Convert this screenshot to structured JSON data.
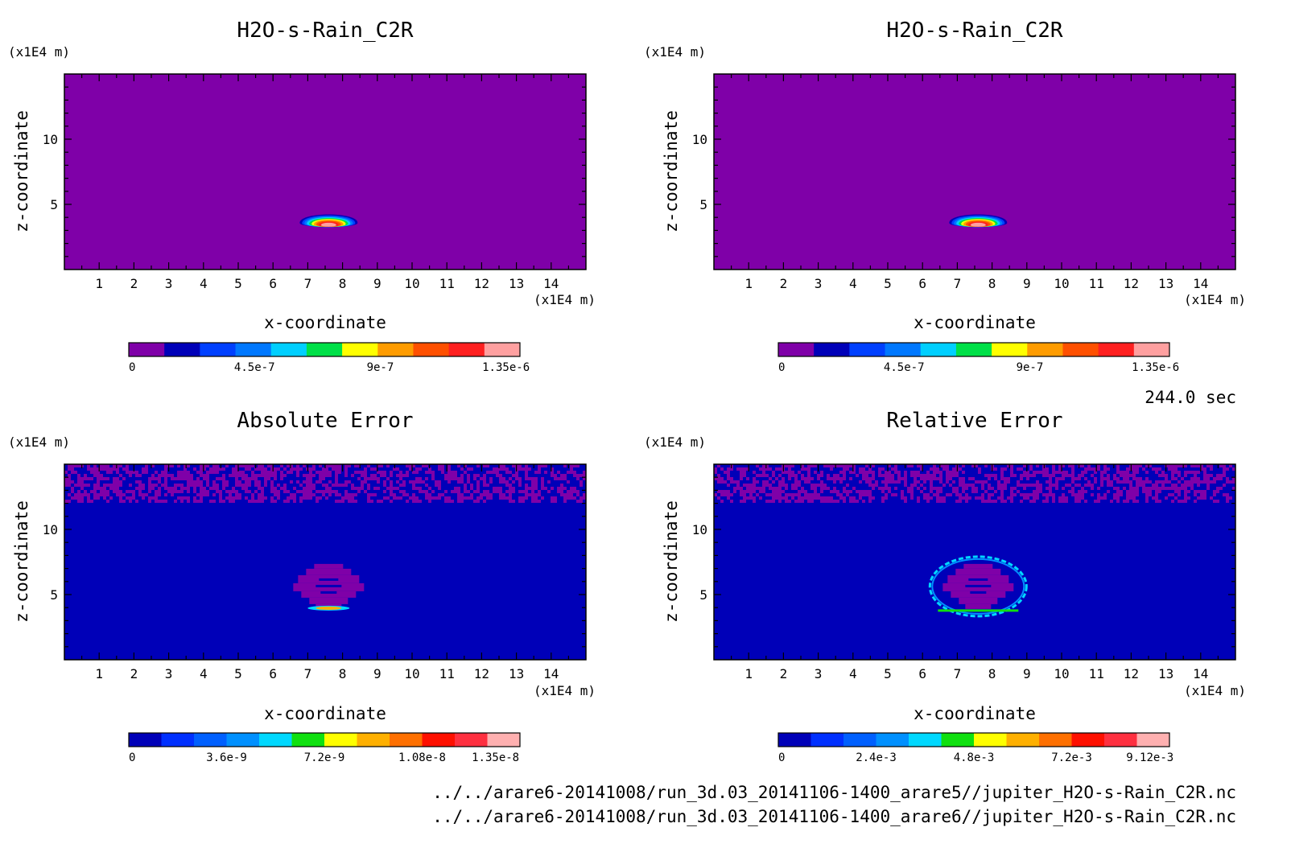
{
  "colors": {
    "background": "#ffffff",
    "frame": "#000000",
    "palette_main": [
      "#7f00a8",
      "#0000b8",
      "#0040ff",
      "#0078ff",
      "#00cfff",
      "#00e048",
      "#ffff00",
      "#ff9c00",
      "#ff5000",
      "#ff2020",
      "#ffa0a0"
    ],
    "palette_error": [
      "#0000b8",
      "#0030ff",
      "#0060ff",
      "#0090ff",
      "#00d8ff",
      "#10e010",
      "#ffff00",
      "#ffb000",
      "#ff7000",
      "#ff1000",
      "#ff3040",
      "#ffb0b0"
    ]
  },
  "time_label": "244.0 sec",
  "footer": {
    "line1": "../../arare6-20141008/run_3d.03_20141106-1400_arare5//jupiter_H2O-s-Rain_C2R.nc",
    "line2": "../../arare6-20141008/run_3d.03_20141106-1400_arare6//jupiter_H2O-s-Rain_C2R.nc"
  },
  "chart_data": [
    {
      "type": "heatmap",
      "title": "H2O-s-Rain_C2R",
      "xlabel": "x-coordinate",
      "ylabel": "z-coordinate",
      "x_unit": "(x1E4 m)",
      "y_unit": "(x1E4 m)",
      "xlim": [
        0,
        15
      ],
      "ylim": [
        0,
        15
      ],
      "xticks": [
        1,
        2,
        3,
        4,
        5,
        6,
        7,
        8,
        9,
        10,
        11,
        12,
        13,
        14
      ],
      "yticks": [
        5,
        10
      ],
      "field": {
        "kind": "rain",
        "center_x": 7.6,
        "center_z": 3.7,
        "max": 1.4e-06
      },
      "colorbar": {
        "min": 0,
        "max": 1.4e-06,
        "ticks": [
          0,
          4.5e-07,
          9e-07,
          1.35e-06
        ],
        "tick_labels": [
          "0",
          "4.5e-7",
          "9e-7",
          "1.35e-6"
        ]
      }
    },
    {
      "type": "heatmap",
      "title": "H2O-s-Rain_C2R",
      "xlabel": "x-coordinate",
      "ylabel": "z-coordinate",
      "x_unit": "(x1E4 m)",
      "y_unit": "(x1E4 m)",
      "xlim": [
        0,
        15
      ],
      "ylim": [
        0,
        15
      ],
      "xticks": [
        1,
        2,
        3,
        4,
        5,
        6,
        7,
        8,
        9,
        10,
        11,
        12,
        13,
        14
      ],
      "yticks": [
        5,
        10
      ],
      "field": {
        "kind": "rain",
        "center_x": 7.6,
        "center_z": 3.7,
        "max": 1.4e-06
      },
      "colorbar": {
        "min": 0,
        "max": 1.4e-06,
        "ticks": [
          0,
          4.5e-07,
          9e-07,
          1.35e-06
        ],
        "tick_labels": [
          "0",
          "4.5e-7",
          "9e-7",
          "1.35e-6"
        ]
      }
    },
    {
      "type": "heatmap",
      "title": "Absolute Error",
      "xlabel": "x-coordinate",
      "ylabel": "z-coordinate",
      "x_unit": "(x1E4 m)",
      "y_unit": "(x1E4 m)",
      "xlim": [
        0,
        15
      ],
      "ylim": [
        0,
        15
      ],
      "xticks": [
        1,
        2,
        3,
        4,
        5,
        6,
        7,
        8,
        9,
        10,
        11,
        12,
        13,
        14
      ],
      "yticks": [
        5,
        10
      ],
      "field": {
        "kind": "abs_error",
        "center_x": 7.6,
        "center_z": 5.5,
        "noise_above_z": 12.2
      },
      "colorbar": {
        "min": 0,
        "max": 1.44e-08,
        "ticks": [
          0,
          3.6e-09,
          7.2e-09,
          1.08e-08,
          1.35e-08
        ],
        "tick_labels": [
          "0",
          "3.6e-9",
          "7.2e-9",
          "1.08e-8",
          "1.35e-8"
        ]
      }
    },
    {
      "type": "heatmap",
      "title": "Relative Error",
      "xlabel": "x-coordinate",
      "ylabel": "z-coordinate",
      "x_unit": "(x1E4 m)",
      "y_unit": "(x1E4 m)",
      "xlim": [
        0,
        15
      ],
      "ylim": [
        0,
        15
      ],
      "xticks": [
        1,
        2,
        3,
        4,
        5,
        6,
        7,
        8,
        9,
        10,
        11,
        12,
        13,
        14
      ],
      "yticks": [
        5,
        10
      ],
      "field": {
        "kind": "rel_error",
        "center_x": 7.6,
        "center_z": 5.5,
        "noise_above_z": 12.2
      },
      "colorbar": {
        "min": 0,
        "max": 0.0096,
        "ticks": [
          0,
          0.0024,
          0.0048,
          0.0072,
          0.00912
        ],
        "tick_labels": [
          "0",
          "2.4e-3",
          "4.8e-3",
          "7.2e-3",
          "9.12e-3"
        ]
      }
    }
  ]
}
